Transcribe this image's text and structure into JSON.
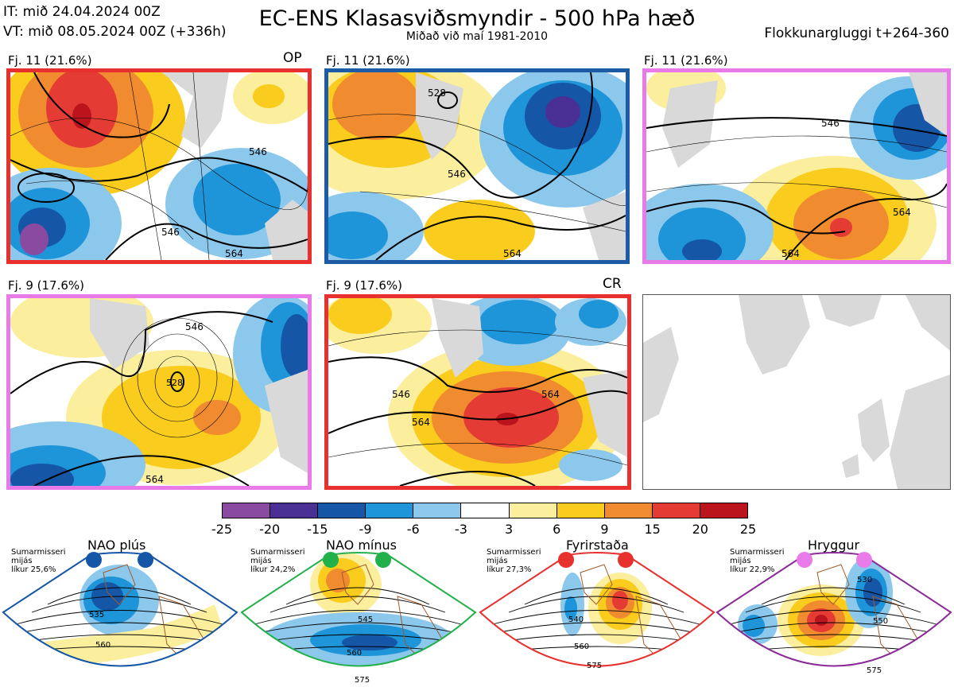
{
  "header": {
    "it_line": "IT: mið 24.04.2024 00Z",
    "vt_line": "VT: mið 08.05.2024 00Z  (+336h)",
    "title": "EC-ENS Klasasviðsmyndir - 500 hPa hæð",
    "subtitle": "Miðað við maí 1981-2010",
    "window_label": "Flokkunargluggi t+264-360"
  },
  "panels": [
    {
      "label": "Fj. 11 (21.6%)",
      "code": "OP",
      "border_color": "#e8302e",
      "contours": [
        "546",
        "546",
        "564"
      ]
    },
    {
      "label": "Fj. 11 (21.6%)",
      "code": "",
      "border_color": "#1d5ba6",
      "contours": [
        "528",
        "546",
        "564"
      ]
    },
    {
      "label": "Fj. 11 (21.6%)",
      "code": "",
      "border_color": "#e97be9",
      "contours": [
        "546",
        "564",
        "564"
      ]
    },
    {
      "label": "Fj. 9 (17.6%)",
      "code": "",
      "border_color": "#e97be9",
      "contours": [
        "528",
        "546",
        "564"
      ]
    },
    {
      "label": "Fj. 9 (17.6%)",
      "code": "CR",
      "border_color": "#e8302e",
      "contours": [
        "546",
        "564",
        "564"
      ]
    }
  ],
  "colorbar": {
    "ticks": [
      "-25",
      "-20",
      "-15",
      "-9",
      "-6",
      "-3",
      "3",
      "6",
      "9",
      "15",
      "20",
      "25"
    ],
    "colors": [
      "#8a4aa0",
      "#4a2f95",
      "#1656a6",
      "#1e94d9",
      "#8cc8ec",
      "#ffffff",
      "#fbee9c",
      "#f9cc1d",
      "#f08b2f",
      "#e43b35",
      "#bc141c"
    ]
  },
  "regimes": [
    {
      "name": "NAO plús",
      "note_line1": "Sumarmisseri",
      "note_line2": "mijás",
      "note_line3": "líkur 25,6%",
      "color": "#1656a6",
      "frame": "#1656a6",
      "contours": [
        "535",
        "560"
      ]
    },
    {
      "name": "NAO mínus",
      "note_line1": "Sumarmisseri",
      "note_line2": "mijás",
      "note_line3": "líkur 24,2%",
      "color": "#22b04b",
      "frame": "#22b04b",
      "contours": [
        "545",
        "560",
        "575"
      ]
    },
    {
      "name": "Fyrirstaða",
      "note_line1": "Sumarmisseri",
      "note_line2": "mijás",
      "note_line3": "líkur 27,3%",
      "color": "#e8302e",
      "frame": "#e8302e",
      "contours": [
        "540",
        "560",
        "575"
      ]
    },
    {
      "name": "Hryggur",
      "note_line1": "Sumarmisseri",
      "note_line2": "mijás",
      "note_line3": "líkur 22,9%",
      "color": "#e97be9",
      "frame": "#8a2a96",
      "contours": [
        "530",
        "550",
        "575"
      ]
    }
  ]
}
